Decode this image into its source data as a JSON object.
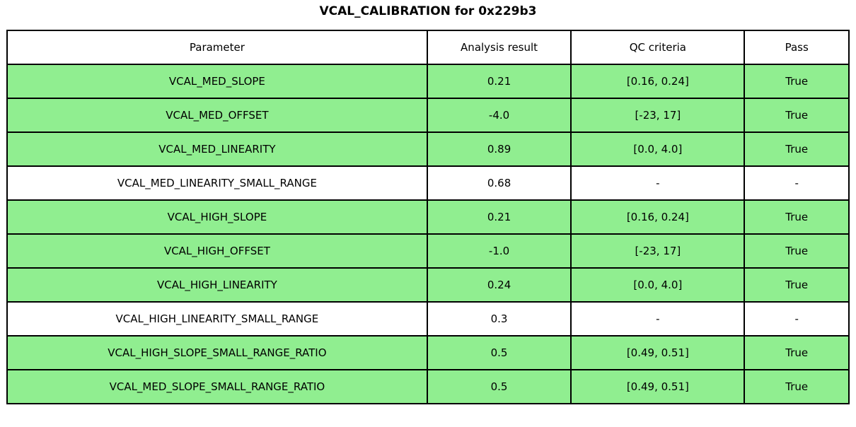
{
  "chart_data": {
    "type": "table",
    "title": "VCAL_CALIBRATION for 0x229b3",
    "columns": [
      "Parameter",
      "Analysis result",
      "QC criteria",
      "Pass"
    ],
    "rows": [
      {
        "parameter": "VCAL_MED_SLOPE",
        "result": "0.21",
        "criteria": "[0.16, 0.24]",
        "pass": "True",
        "highlight": true
      },
      {
        "parameter": "VCAL_MED_OFFSET",
        "result": "-4.0",
        "criteria": "[-23, 17]",
        "pass": "True",
        "highlight": true
      },
      {
        "parameter": "VCAL_MED_LINEARITY",
        "result": "0.89",
        "criteria": "[0.0, 4.0]",
        "pass": "True",
        "highlight": true
      },
      {
        "parameter": "VCAL_MED_LINEARITY_SMALL_RANGE",
        "result": "0.68",
        "criteria": "-",
        "pass": "-",
        "highlight": false
      },
      {
        "parameter": "VCAL_HIGH_SLOPE",
        "result": "0.21",
        "criteria": "[0.16, 0.24]",
        "pass": "True",
        "highlight": true
      },
      {
        "parameter": "VCAL_HIGH_OFFSET",
        "result": "-1.0",
        "criteria": "[-23, 17]",
        "pass": "True",
        "highlight": true
      },
      {
        "parameter": "VCAL_HIGH_LINEARITY",
        "result": "0.24",
        "criteria": "[0.0, 4.0]",
        "pass": "True",
        "highlight": true
      },
      {
        "parameter": "VCAL_HIGH_LINEARITY_SMALL_RANGE",
        "result": "0.3",
        "criteria": "-",
        "pass": "-",
        "highlight": false
      },
      {
        "parameter": "VCAL_HIGH_SLOPE_SMALL_RANGE_RATIO",
        "result": "0.5",
        "criteria": "[0.49, 0.51]",
        "pass": "True",
        "highlight": true
      },
      {
        "parameter": "VCAL_MED_SLOPE_SMALL_RANGE_RATIO",
        "result": "0.5",
        "criteria": "[0.49, 0.51]",
        "pass": "True",
        "highlight": true
      }
    ],
    "colors": {
      "pass_row_bg": "#90EE90",
      "neutral_row_bg": "#FFFFFF",
      "border": "#000000",
      "text": "#000000"
    },
    "layout": {
      "legend": "none",
      "grid": "table-borders"
    }
  }
}
